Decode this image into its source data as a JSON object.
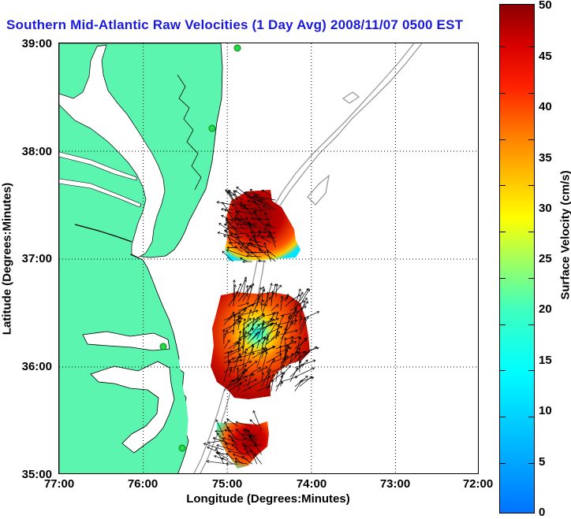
{
  "title": "Southern Mid-Atlantic Raw Velocities (1 Day Avg) 2008/11/07 0500 EST",
  "axes": {
    "xlabel": "Longitude (Degrees:Minutes)",
    "ylabel": "Latitude (Degrees:Minutes)",
    "x_ticks": [
      "77:00",
      "76:00",
      "75:00",
      "74:00",
      "73:00",
      "72:00"
    ],
    "y_ticks": [
      "39:00",
      "38:00",
      "37:00",
      "36:00",
      "35:00"
    ]
  },
  "colorbar": {
    "label": "Surface Velocity (cm/s)",
    "ticks": [
      "50",
      "45",
      "40",
      "35",
      "30",
      "25",
      "20",
      "15",
      "10",
      "5",
      "0"
    ],
    "range": [
      0,
      50
    ],
    "colormap": "jet"
  },
  "colors": {
    "title": "#1a1adc",
    "land": "#5cf5b0",
    "water": "#ffffff",
    "bathymetry": "#9a9a9a",
    "station_marker": "#22dd44"
  },
  "map_extent": {
    "lon": [
      -77,
      -72
    ],
    "lat": [
      35,
      39
    ]
  },
  "stations": [
    {
      "lon": -74.84,
      "lat": 39.05
    },
    {
      "lon": -75.15,
      "lat": 38.22
    },
    {
      "lon": -75.85,
      "lat": 36.19
    },
    {
      "lon": -75.47,
      "lat": 35.25
    }
  ],
  "velocity_patches": [
    {
      "name": "north",
      "lat_range": [
        36.95,
        37.62
      ],
      "lon_range": [
        -74.95,
        -74.4
      ],
      "speed_range_cms": [
        10,
        50
      ]
    },
    {
      "name": "central",
      "lat_range": [
        35.75,
        36.68
      ],
      "lon_range": [
        -75.06,
        -74.1
      ],
      "speed_range_cms": [
        12,
        50
      ]
    },
    {
      "name": "south",
      "lat_range": [
        35.08,
        35.48
      ],
      "lon_range": [
        -75.06,
        -74.55
      ],
      "speed_range_cms": [
        15,
        50
      ]
    }
  ]
}
